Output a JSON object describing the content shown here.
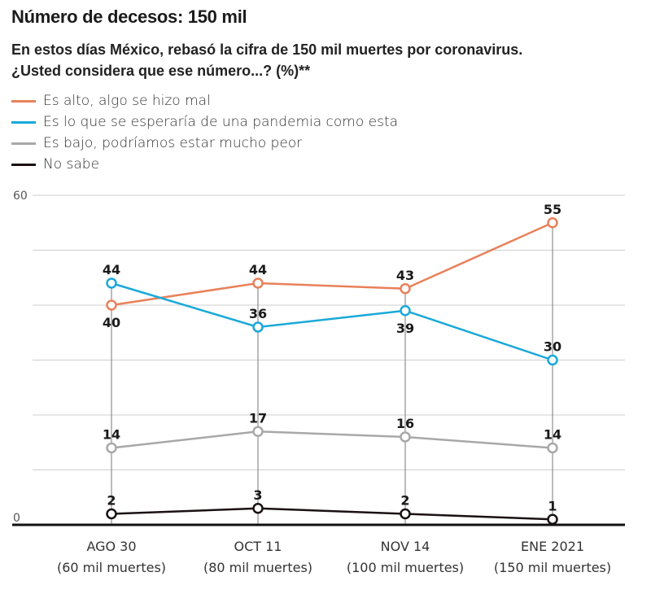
{
  "header": {
    "title": "Número de decesos: 150 mil",
    "subtitle_line1": "En estos días México, rebasó la cifra de 150 mil muertes por coronavirus.",
    "subtitle_line2": "¿Usted considera que ese número...?  (%)**"
  },
  "chart_data": {
    "type": "line",
    "title": "Número de decesos: 150 mil",
    "subtitle": "En estos días México, rebasó la cifra de 150 mil muertes por coronavirus. ¿Usted considera que ese número...? (%)**",
    "xlabel": "",
    "ylabel": "",
    "ylim": [
      0,
      60
    ],
    "yticks": [
      0,
      60
    ],
    "grid_values": [
      10,
      20,
      30,
      40,
      50,
      60
    ],
    "grid": true,
    "legend_position": "top-left",
    "categories": [
      {
        "line1": "AGO 30",
        "line2": "(60 mil muertes)"
      },
      {
        "line1": "OCT 11",
        "line2": "(80 mil muertes)"
      },
      {
        "line1": "NOV 14",
        "line2": "(100 mil muertes)"
      },
      {
        "line1": "ENE 2021",
        "line2": "(150 mil muertes)"
      }
    ],
    "series": [
      {
        "name": "Es alto, algo se hizo mal",
        "color": "#e8815a",
        "values": [
          40,
          44,
          43,
          55
        ],
        "label_pos": [
          "below",
          "above",
          "above",
          "above"
        ]
      },
      {
        "name": "Es lo que se esperaría de una pandemia como esta",
        "color": "#1aa9d8",
        "values": [
          44,
          36,
          39,
          30
        ],
        "label_pos": [
          "above",
          "above",
          "below",
          "above"
        ]
      },
      {
        "name": "Es bajo, podríamos estar mucho peor",
        "color": "#a8a8a8",
        "values": [
          14,
          17,
          16,
          14
        ],
        "label_pos": [
          "above",
          "above",
          "above",
          "above"
        ]
      },
      {
        "name": "No sabe",
        "color": "#1a1212",
        "values": [
          2,
          3,
          2,
          1
        ],
        "label_pos": [
          "above",
          "above",
          "above",
          "above"
        ]
      }
    ]
  }
}
